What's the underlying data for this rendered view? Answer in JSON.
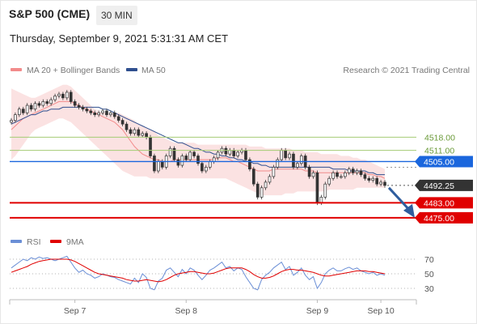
{
  "header": {
    "title": "S&P 500 (CME)",
    "timeframe": "30 MIN",
    "datetime": "Thursday, September 9, 2021 5:31:31 AM CET"
  },
  "legend": {
    "bollinger": "MA 20 + Bollinger Bands",
    "ma50": "MA 50",
    "credit": "Research © 2021 Trading Central",
    "rsi": "RSI",
    "rsi_ma": "9MA"
  },
  "colors": {
    "bollinger": "#f28b8b",
    "band_fill": "#fbe2e2",
    "ma50": "#2f4f8f",
    "support": "#e00000",
    "pivot": "#1a66dd",
    "resistance_line": "#a4cc74",
    "current": "#333333",
    "arrow": "#2f5d9e",
    "rsi": "#6b8fd6"
  },
  "chart_data": {
    "type": "candlestick",
    "x_ticks": [
      "Sep 7",
      "Sep 8",
      "Sep 9",
      "Sep 10"
    ],
    "ylim": [
      4468,
      4548
    ],
    "levels": [
      {
        "label": "4518.00",
        "value": 4518,
        "kind": "resistance"
      },
      {
        "label": "4511.00",
        "value": 4511,
        "kind": "resistance"
      },
      {
        "label": "4505.00",
        "value": 4505,
        "kind": "pivot"
      },
      {
        "label": "4492.25",
        "value": 4492.25,
        "kind": "current"
      },
      {
        "label": "4483.00",
        "value": 4483,
        "kind": "support"
      },
      {
        "label": "4475.00",
        "value": 4475,
        "kind": "support"
      }
    ],
    "close": [
      4527,
      4530,
      4533,
      4531,
      4535,
      4533,
      4536,
      4535,
      4537,
      4536,
      4538,
      4540,
      4541,
      4539,
      4542,
      4537,
      4535,
      4534,
      4533,
      4532,
      4531,
      4530,
      4531,
      4532,
      4530,
      4531,
      4529,
      4527,
      4525,
      4522,
      4520,
      4522,
      4519,
      4520,
      4518,
      4508,
      4500,
      4505,
      4502,
      4508,
      4512,
      4506,
      4503,
      4508,
      4506,
      4510,
      4508,
      4504,
      4500,
      4502,
      4505,
      4507,
      4510,
      4512,
      4509,
      4511,
      4508,
      4510,
      4511,
      4506,
      4501,
      4493,
      4486,
      4491,
      4494,
      4497,
      4502,
      4506,
      4511,
      4507,
      4509,
      4502,
      4504,
      4508,
      4502,
      4497,
      4499,
      4483,
      4486,
      4493,
      4496,
      4499,
      4497,
      4497,
      4499,
      4501,
      4499,
      4500,
      4498,
      4496,
      4495,
      4496,
      4493,
      4494,
      4492.25
    ],
    "bollinger_upper": [
      4544,
      4543,
      4542,
      4541,
      4540,
      4539,
      4539,
      4540,
      4541,
      4542,
      4543,
      4544,
      4545,
      4546,
      4546,
      4545,
      4543,
      4541,
      4539,
      4537,
      4535,
      4533,
      4532,
      4531,
      4531,
      4531,
      4531,
      4531,
      4530,
      4529,
      4528,
      4527,
      4525,
      4524,
      4523,
      4522,
      4521,
      4519,
      4518,
      4517,
      4516,
      4515,
      4515,
      4515,
      4515,
      4515,
      4515,
      4514,
      4514,
      4514,
      4514,
      4514,
      4514,
      4514,
      4514,
      4514,
      4514,
      4514,
      4514,
      4514,
      4513,
      4513,
      4513,
      4513,
      4512,
      4512,
      4512,
      4512,
      4512,
      4512,
      4512,
      4511,
      4511,
      4511,
      4510,
      4510,
      4510,
      4510,
      4509,
      4509,
      4509,
      4509,
      4509,
      4508,
      4508,
      4508,
      4507,
      4507,
      4506,
      4506,
      4505,
      4504,
      4503,
      4502,
      4501
    ],
    "bollinger_middle": [
      4522,
      4524,
      4526,
      4528,
      4529,
      4530,
      4531,
      4532,
      4533,
      4534,
      4535,
      4536,
      4537,
      4537,
      4537,
      4537,
      4536,
      4535,
      4534,
      4533,
      4532,
      4531,
      4530,
      4529,
      4528,
      4527,
      4526,
      4524,
      4522,
      4519,
      4516,
      4513,
      4511,
      4509,
      4508,
      4507,
      4506,
      4506,
      4505,
      4505,
      4505,
      4506,
      4506,
      4506,
      4506,
      4506,
      4506,
      4506,
      4506,
      4506,
      4506,
      4506,
      4507,
      4507,
      4507,
      4506,
      4505,
      4505,
      4504,
      4503,
      4502,
      4501,
      4500,
      4500,
      4500,
      4500,
      4501,
      4501,
      4501,
      4501,
      4501,
      4501,
      4501,
      4501,
      4500,
      4500,
      4500,
      4499,
      4499,
      4499,
      4499,
      4499,
      4499,
      4499,
      4499,
      4499,
      4499,
      4499,
      4499,
      4499,
      4498,
      4498,
      4497,
      4497,
      4496
    ],
    "bollinger_lower": [
      4506,
      4508,
      4511,
      4514,
      4517,
      4520,
      4522,
      4523,
      4524,
      4525,
      4526,
      4527,
      4528,
      4528,
      4527,
      4526,
      4524,
      4522,
      4520,
      4518,
      4516,
      4514,
      4512,
      4510,
      4508,
      4506,
      4504,
      4502,
      4500,
      4499,
      4498,
      4497,
      4497,
      4497,
      4497,
      4496,
      4496,
      4496,
      4496,
      4496,
      4496,
      4496,
      4496,
      4496,
      4496,
      4496,
      4496,
      4496,
      4496,
      4496,
      4496,
      4496,
      4496,
      4496,
      4496,
      4495,
      4494,
      4493,
      4492,
      4491,
      4490,
      4489,
      4488,
      4487,
      4487,
      4487,
      4487,
      4487,
      4487,
      4488,
      4488,
      4488,
      4489,
      4489,
      4489,
      4489,
      4489,
      4489,
      4489,
      4489,
      4490,
      4490,
      4490,
      4490,
      4490,
      4490,
      4490,
      4491,
      4491,
      4491,
      4491,
      4491,
      4491,
      4491,
      4491
    ],
    "ma50": [
      4525,
      4526,
      4527,
      4528,
      4529,
      4530,
      4530,
      4531,
      4532,
      4532,
      4533,
      4533,
      4533,
      4534,
      4534,
      4534,
      4534,
      4534,
      4534,
      4534,
      4534,
      4534,
      4534,
      4533,
      4533,
      4532,
      4531,
      4530,
      4529,
      4528,
      4527,
      4526,
      4525,
      4524,
      4523,
      4522,
      4521,
      4520,
      4519,
      4518,
      4517,
      4516,
      4515,
      4515,
      4514,
      4513,
      4512,
      4512,
      4511,
      4510,
      4510,
      4509,
      4509,
      4508,
      4508,
      4507,
      4507,
      4506,
      4506,
      4505,
      4505,
      4504,
      4504,
      4503,
      4503,
      4502,
      4502,
      4502,
      4502,
      4502,
      4502,
      4502,
      4502,
      4502,
      4502,
      4502,
      4502,
      4502,
      4502,
      4502,
      4502,
      4501,
      4501,
      4501,
      4501,
      4500,
      4500,
      4500,
      4500,
      4500,
      4499,
      4499,
      4498,
      4498,
      4498
    ],
    "rsi_ticks": [
      70,
      50,
      30
    ],
    "rsi": [
      58,
      62,
      66,
      70,
      68,
      72,
      70,
      73,
      71,
      72,
      70,
      68,
      70,
      72,
      74,
      66,
      58,
      52,
      55,
      50,
      48,
      44,
      46,
      50,
      48,
      46,
      45,
      42,
      40,
      38,
      36,
      44,
      38,
      50,
      45,
      30,
      28,
      40,
      44,
      55,
      58,
      52,
      46,
      56,
      50,
      58,
      55,
      48,
      42,
      48,
      55,
      58,
      62,
      66,
      58,
      60,
      54,
      58,
      56,
      46,
      38,
      30,
      28,
      42,
      48,
      52,
      58,
      62,
      66,
      56,
      60,
      48,
      52,
      58,
      48,
      42,
      46,
      30,
      38,
      50,
      55,
      58,
      54,
      54,
      57,
      59,
      56,
      58,
      54,
      52,
      50,
      52,
      48,
      50,
      48
    ],
    "rsi_ma": [
      52,
      54,
      56,
      58,
      60,
      63,
      65,
      67,
      68,
      69,
      70,
      70,
      70,
      70,
      70,
      69,
      67,
      64,
      61,
      58,
      55,
      52,
      50,
      49,
      48,
      47,
      46,
      45,
      44,
      42,
      41,
      40,
      40,
      41,
      42,
      41,
      40,
      39,
      40,
      42,
      45,
      48,
      50,
      51,
      52,
      53,
      53,
      52,
      51,
      50,
      50,
      51,
      53,
      55,
      57,
      58,
      58,
      58,
      58,
      56,
      53,
      49,
      46,
      44,
      44,
      45,
      47,
      50,
      53,
      55,
      56,
      56,
      55,
      55,
      54,
      53,
      52,
      50,
      48,
      47,
      47,
      48,
      49,
      50,
      51,
      52,
      53,
      54,
      54,
      54,
      53,
      53,
      52,
      51,
      50
    ]
  }
}
